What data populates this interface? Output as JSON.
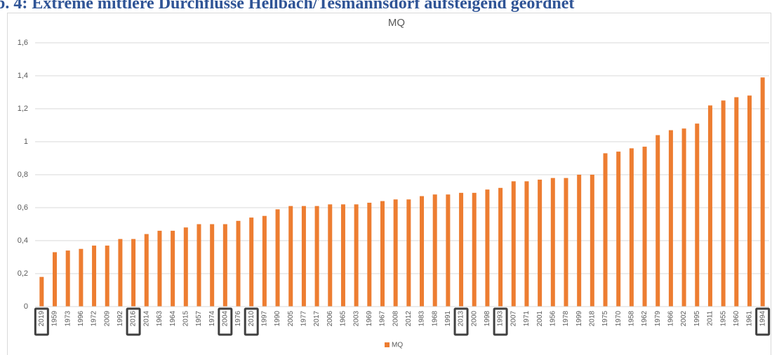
{
  "heading": "b. 4: Extreme mittlere Durchflüsse Hellbach/Tesmannsdorf aufsteigend geordnet",
  "chart_data": {
    "type": "bar",
    "title": "MQ",
    "categories": [
      "2019",
      "1959",
      "1973",
      "1996",
      "1972",
      "2009",
      "1992",
      "2016",
      "2014",
      "1963",
      "1964",
      "2015",
      "1957",
      "1974",
      "2004",
      "1976",
      "2010",
      "1997",
      "1990",
      "2005",
      "1977",
      "2017",
      "2006",
      "1965",
      "2003",
      "1969",
      "1967",
      "2008",
      "2012",
      "1983",
      "1968",
      "1991",
      "2013",
      "2000",
      "1998",
      "1993",
      "2007",
      "1971",
      "2001",
      "1956",
      "1978",
      "1999",
      "2018",
      "1975",
      "1970",
      "1958",
      "1962",
      "1979",
      "1966",
      "2002",
      "1995",
      "2011",
      "1955",
      "1960",
      "1961",
      "1994"
    ],
    "series": [
      {
        "name": "MQ",
        "color": "#ed7d31",
        "values": [
          0.18,
          0.33,
          0.34,
          0.35,
          0.37,
          0.37,
          0.41,
          0.41,
          0.44,
          0.46,
          0.46,
          0.48,
          0.5,
          0.5,
          0.5,
          0.52,
          0.54,
          0.55,
          0.59,
          0.61,
          0.61,
          0.61,
          0.62,
          0.62,
          0.62,
          0.63,
          0.64,
          0.65,
          0.65,
          0.67,
          0.68,
          0.68,
          0.69,
          0.69,
          0.71,
          0.72,
          0.76,
          0.76,
          0.77,
          0.78,
          0.78,
          0.8,
          0.8,
          0.93,
          0.94,
          0.96,
          0.97,
          1.04,
          1.07,
          1.08,
          1.11,
          1.22,
          1.25,
          1.27,
          1.28,
          1.39
        ]
      }
    ],
    "ylim": [
      0,
      1.6
    ],
    "yticks": [
      0,
      {
        "value": 0.2,
        "label": "0,2"
      },
      {
        "value": 0.4,
        "label": "0,4"
      },
      {
        "value": 0.6,
        "label": "0,6"
      },
      {
        "value": 0.8,
        "label": "0,8"
      },
      1,
      {
        "value": 1.2,
        "label": "1,2"
      },
      {
        "value": 1.4,
        "label": "1,4"
      },
      {
        "value": 1.6,
        "label": "1,6"
      }
    ],
    "grid": true,
    "legend": "bottom",
    "highlighted": [
      0,
      7,
      14,
      16,
      32,
      35,
      55
    ]
  }
}
